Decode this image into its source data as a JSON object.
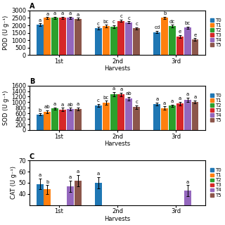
{
  "chart_data": [
    {
      "type": "bar",
      "title": "A",
      "xlabel": "Harvests",
      "ylabel": "POD (U g⁻¹)",
      "categories": [
        "1st",
        "2nd",
        "3rd"
      ],
      "series": [
        {
          "name": "T0",
          "values": [
            2050,
            1800,
            1550
          ],
          "errors": [
            80,
            90,
            80
          ],
          "letters": [
            "a",
            "c",
            "cd"
          ]
        },
        {
          "name": "T1",
          "values": [
            2500,
            1950,
            2500
          ],
          "errors": [
            60,
            80,
            70
          ],
          "letters": [
            "a",
            "bc",
            "b"
          ]
        },
        {
          "name": "T2",
          "values": [
            2500,
            1900,
            1950
          ],
          "errors": [
            70,
            100,
            80
          ],
          "letters": [
            "a",
            "c",
            "dc"
          ]
        },
        {
          "name": "T3",
          "values": [
            2500,
            2300,
            1250
          ],
          "errors": [
            80,
            80,
            90
          ],
          "letters": [
            "a",
            "c",
            "e"
          ]
        },
        {
          "name": "T4",
          "values": [
            2500,
            2200,
            1850
          ],
          "errors": [
            70,
            70,
            80
          ],
          "letters": [
            "a",
            "c",
            "bc"
          ]
        },
        {
          "name": "T5",
          "values": [
            2450,
            1800,
            1050
          ],
          "errors": [
            60,
            80,
            90
          ],
          "letters": [
            "a",
            "c",
            "e"
          ]
        }
      ],
      "ylim": [
        0,
        3000
      ],
      "yticks": [
        0,
        500,
        1000,
        1500,
        2000,
        2500,
        3000
      ],
      "legend": "right"
    },
    {
      "type": "bar",
      "title": "B",
      "xlabel": "Harvests",
      "ylabel": "SOD (U g⁻¹)",
      "categories": [
        "1st",
        "2nd",
        "3rd"
      ],
      "series": [
        {
          "name": "T0",
          "values": [
            560,
            880,
            940
          ],
          "errors": [
            40,
            60,
            50
          ],
          "letters": [
            "b",
            "c",
            "a"
          ]
        },
        {
          "name": "T1",
          "values": [
            660,
            980,
            790
          ],
          "errors": [
            50,
            70,
            60
          ],
          "letters": [
            "ab",
            "bc",
            "a"
          ]
        },
        {
          "name": "T2",
          "values": [
            770,
            1290,
            870
          ],
          "errors": [
            40,
            80,
            50
          ],
          "letters": [
            "a",
            "a",
            "a"
          ]
        },
        {
          "name": "T3",
          "values": [
            740,
            1275,
            950
          ],
          "errors": [
            60,
            70,
            60
          ],
          "letters": [
            "a",
            "a",
            "a"
          ]
        },
        {
          "name": "T4",
          "values": [
            750,
            1130,
            1090
          ],
          "errors": [
            50,
            60,
            70
          ],
          "letters": [
            "ab",
            "ab",
            "a"
          ]
        },
        {
          "name": "T5",
          "values": [
            760,
            820,
            1010
          ],
          "errors": [
            50,
            70,
            60
          ],
          "letters": [
            "a",
            "c",
            "a"
          ]
        }
      ],
      "ylim": [
        0,
        1600
      ],
      "yticks": [
        0,
        200,
        400,
        600,
        800,
        1000,
        1200,
        1400,
        1600
      ],
      "legend": "right"
    },
    {
      "type": "bar",
      "title": "C",
      "xlabel": "Harvests",
      "ylabel": "CAT (U g⁻¹)",
      "categories": [
        "1st",
        "2nd",
        "3rd"
      ],
      "series": [
        {
          "name": "T0",
          "values": [
            49,
            50,
            null
          ],
          "errors": [
            5,
            5,
            null
          ],
          "letters": [
            "a",
            "a",
            null
          ]
        },
        {
          "name": "T1",
          "values": [
            44,
            null,
            null
          ],
          "errors": [
            4,
            null,
            null
          ],
          "letters": [
            "b",
            null,
            null
          ]
        },
        {
          "name": "T2",
          "values": [
            null,
            null,
            null
          ],
          "errors": [
            null,
            null,
            null
          ],
          "letters": [
            null,
            null,
            null
          ]
        },
        {
          "name": "T3",
          "values": [
            null,
            null,
            null
          ],
          "errors": [
            null,
            null,
            null
          ],
          "letters": [
            null,
            null,
            null
          ]
        },
        {
          "name": "T4",
          "values": [
            47,
            null,
            43
          ],
          "errors": [
            5,
            null,
            5
          ],
          "letters": [
            "a",
            null,
            "a"
          ]
        },
        {
          "name": "T5",
          "values": [
            52,
            null,
            null
          ],
          "errors": [
            5,
            null,
            null
          ],
          "letters": [
            "a",
            null,
            null
          ]
        }
      ],
      "ylim": [
        30,
        70
      ],
      "yticks": [
        40,
        50,
        60,
        70
      ],
      "legend": "right"
    }
  ]
}
